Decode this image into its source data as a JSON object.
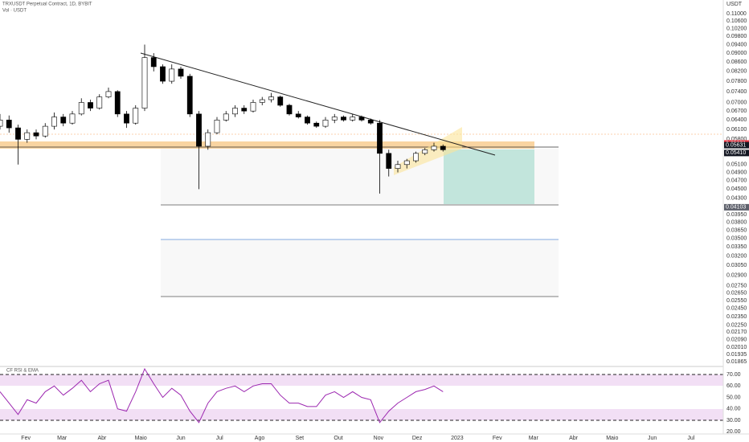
{
  "chart_data": {
    "type": "candlestick",
    "title": "TRXUSDT Perpetual Contract, 1D, BYBIT",
    "subtitle": "Vol · USDT",
    "y_unit": "USDT",
    "log_scale": true,
    "grid": false,
    "up_color": "#ffffff",
    "down_color": "#000000",
    "x": [
      -20,
      -13,
      -6,
      1,
      8,
      15,
      22,
      29,
      36,
      43,
      50,
      57,
      64,
      71,
      78,
      85,
      92,
      99,
      106,
      113,
      120,
      127,
      134,
      141,
      148,
      155,
      162,
      169,
      176,
      183,
      190,
      197,
      204,
      211,
      218,
      225,
      232,
      239,
      246,
      253,
      260,
      267,
      274,
      281,
      288,
      295,
      302,
      309,
      316,
      323
    ],
    "open": [
      0.062,
      0.064,
      0.0615,
      0.058,
      0.06,
      0.059,
      0.062,
      0.065,
      0.063,
      0.066,
      0.07,
      0.068,
      0.072,
      0.074,
      0.066,
      0.063,
      0.068,
      0.088,
      0.084,
      0.078,
      0.083,
      0.08,
      0.066,
      0.056,
      0.06,
      0.064,
      0.066,
      0.068,
      0.067,
      0.07,
      0.071,
      0.072,
      0.069,
      0.066,
      0.065,
      0.063,
      0.062,
      0.064,
      0.065,
      0.064,
      0.065,
      0.064,
      0.063,
      0.054,
      0.05,
      0.051,
      0.052,
      0.054,
      0.055,
      0.056
    ],
    "high": [
      0.066,
      0.0655,
      0.0625,
      0.061,
      0.061,
      0.063,
      0.0665,
      0.066,
      0.067,
      0.0715,
      0.071,
      0.073,
      0.0755,
      0.0745,
      0.067,
      0.069,
      0.094,
      0.09,
      0.085,
      0.085,
      0.084,
      0.081,
      0.067,
      0.061,
      0.065,
      0.067,
      0.069,
      0.069,
      0.071,
      0.072,
      0.0735,
      0.0725,
      0.0695,
      0.067,
      0.0655,
      0.0635,
      0.065,
      0.066,
      0.0655,
      0.066,
      0.0655,
      0.0645,
      0.064,
      0.055,
      0.052,
      0.0525,
      0.0545,
      0.0555,
      0.057,
      0.0565
    ],
    "low": [
      0.061,
      0.06,
      0.051,
      0.057,
      0.058,
      0.0585,
      0.061,
      0.062,
      0.0625,
      0.0655,
      0.067,
      0.0675,
      0.0715,
      0.065,
      0.0615,
      0.0625,
      0.067,
      0.082,
      0.077,
      0.077,
      0.079,
      0.065,
      0.045,
      0.055,
      0.0595,
      0.0635,
      0.065,
      0.066,
      0.0665,
      0.069,
      0.07,
      0.0685,
      0.0655,
      0.0645,
      0.0625,
      0.0615,
      0.0615,
      0.063,
      0.0635,
      0.0635,
      0.0635,
      0.0625,
      0.044,
      0.048,
      0.049,
      0.05,
      0.0515,
      0.0535,
      0.0545,
      0.0545
    ],
    "close": [
      0.064,
      0.0615,
      0.058,
      0.06,
      0.059,
      0.062,
      0.065,
      0.063,
      0.066,
      0.07,
      0.068,
      0.072,
      0.074,
      0.066,
      0.063,
      0.068,
      0.088,
      0.084,
      0.078,
      0.083,
      0.08,
      0.066,
      0.056,
      0.06,
      0.064,
      0.066,
      0.068,
      0.067,
      0.07,
      0.071,
      0.072,
      0.069,
      0.066,
      0.065,
      0.063,
      0.062,
      0.064,
      0.065,
      0.064,
      0.065,
      0.064,
      0.063,
      0.054,
      0.05,
      0.051,
      0.052,
      0.054,
      0.055,
      0.056,
      0.055
    ],
    "xlim": [
      -20,
      540
    ],
    "xticks": [
      {
        "value": 0,
        "label": "Fev"
      },
      {
        "value": 28,
        "label": "Mar"
      },
      {
        "value": 59,
        "label": "Abr"
      },
      {
        "value": 89,
        "label": "Maio"
      },
      {
        "value": 120,
        "label": "Jun"
      },
      {
        "value": 150,
        "label": "Jul"
      },
      {
        "value": 181,
        "label": "Ago"
      },
      {
        "value": 212,
        "label": "Set"
      },
      {
        "value": 242,
        "label": "Out"
      },
      {
        "value": 273,
        "label": "Nov"
      },
      {
        "value": 303,
        "label": "Dez"
      },
      {
        "value": 334,
        "label": "2023"
      },
      {
        "value": 365,
        "label": "Fev"
      },
      {
        "value": 393,
        "label": "Mar"
      },
      {
        "value": 424,
        "label": "Abr"
      },
      {
        "value": 454,
        "label": "Maio"
      },
      {
        "value": 485,
        "label": "Jun"
      },
      {
        "value": 515,
        "label": "Jul"
      }
    ],
    "ylim": [
      0.0183,
      0.118
    ],
    "yticks": [
      {
        "value": 0.11,
        "label": "0.11000"
      },
      {
        "value": 0.106,
        "label": "0.10600"
      },
      {
        "value": 0.102,
        "label": "0.10200"
      },
      {
        "value": 0.098,
        "label": "0.09800"
      },
      {
        "value": 0.094,
        "label": "0.09400"
      },
      {
        "value": 0.09,
        "label": "0.09000"
      },
      {
        "value": 0.086,
        "label": "0.08600"
      },
      {
        "value": 0.082,
        "label": "0.08200"
      },
      {
        "value": 0.078,
        "label": "0.07800"
      },
      {
        "value": 0.074,
        "label": "0.07400"
      },
      {
        "value": 0.07,
        "label": "0.07000"
      },
      {
        "value": 0.067,
        "label": "0.06700"
      },
      {
        "value": 0.064,
        "label": "0.06400"
      },
      {
        "value": 0.061,
        "label": "0.06100"
      },
      {
        "value": 0.058,
        "label": "0.05800"
      },
      {
        "value": 0.051,
        "label": "0.05100"
      },
      {
        "value": 0.049,
        "label": "0.04900"
      },
      {
        "value": 0.047,
        "label": "0.04700"
      },
      {
        "value": 0.045,
        "label": "0.04500"
      },
      {
        "value": 0.043,
        "label": "0.04300"
      },
      {
        "value": 0.0395,
        "label": "0.03950"
      },
      {
        "value": 0.038,
        "label": "0.03800"
      },
      {
        "value": 0.0365,
        "label": "0.03650"
      },
      {
        "value": 0.035,
        "label": "0.03500"
      },
      {
        "value": 0.0335,
        "label": "0.03350"
      },
      {
        "value": 0.032,
        "label": "0.03200"
      },
      {
        "value": 0.0305,
        "label": "0.03050"
      },
      {
        "value": 0.029,
        "label": "0.02900"
      },
      {
        "value": 0.0275,
        "label": "0.02750"
      },
      {
        "value": 0.0265,
        "label": "0.02650"
      },
      {
        "value": 0.0255,
        "label": "0.02550"
      },
      {
        "value": 0.0245,
        "label": "0.02450"
      },
      {
        "value": 0.0235,
        "label": "0.02350"
      },
      {
        "value": 0.0225,
        "label": "0.02250"
      },
      {
        "value": 0.0217,
        "label": "0.02170"
      },
      {
        "value": 0.0209,
        "label": "0.02090"
      },
      {
        "value": 0.0201,
        "label": "0.02010"
      },
      0.01935,
      0.01865
    ],
    "price_markers": [
      {
        "value": 0.05681,
        "color": "#f23645"
      },
      {
        "value": 0.05631,
        "color": "#131722"
      },
      {
        "value": 0.0541,
        "label": "0.05410",
        "color": "#131722"
      },
      {
        "value": 0.04103,
        "color": "#5d606b"
      }
    ],
    "rsi": {
      "name": "CF RSI & EMA",
      "color": "#9c27b0",
      "values": [
        55,
        45,
        35,
        48,
        45,
        55,
        60,
        52,
        58,
        65,
        55,
        62,
        65,
        40,
        38,
        55,
        75,
        62,
        50,
        58,
        52,
        38,
        28,
        45,
        55,
        58,
        60,
        55,
        60,
        62,
        62,
        52,
        45,
        45,
        42,
        42,
        52,
        55,
        50,
        55,
        50,
        48,
        28,
        38,
        45,
        50,
        55,
        57,
        60,
        55
      ],
      "ylim": [
        18,
        75
      ],
      "yticks": [
        {
          "value": 70,
          "label": "70.00"
        },
        {
          "value": 60,
          "label": "60.00"
        },
        {
          "value": 50,
          "label": "50.00"
        },
        {
          "value": 40,
          "label": "40.00"
        },
        {
          "value": 30,
          "label": "30.00"
        },
        {
          "value": 20,
          "label": "20.00"
        }
      ]
    }
  }
}
